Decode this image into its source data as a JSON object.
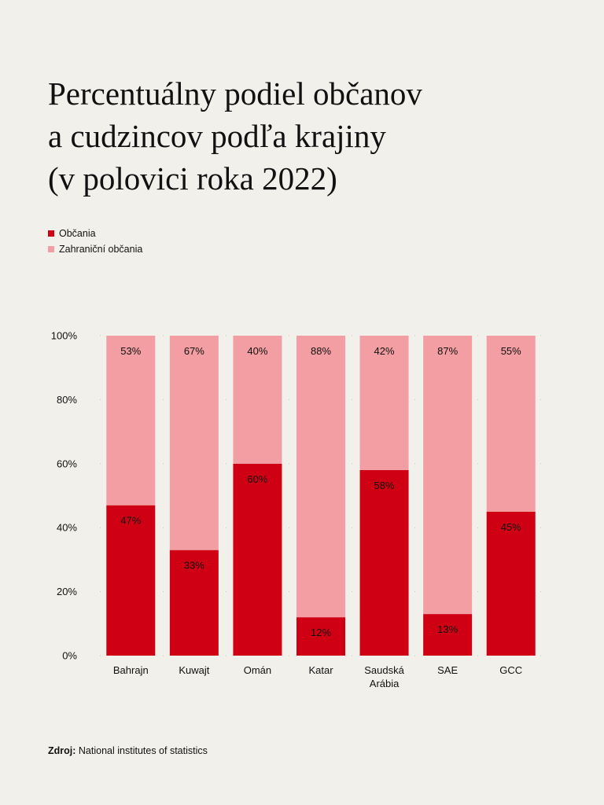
{
  "title_lines": [
    "Percentuálny podiel občanov",
    "a cudzincov podľa krajiny",
    "(v polovici roka 2022)"
  ],
  "legend": [
    {
      "label": "Občania",
      "color": "#cf0013"
    },
    {
      "label": "Zahraniční občania",
      "color": "#f29ea2"
    }
  ],
  "source": {
    "label": "Zdroj:",
    "text": "National institutes of statistics"
  },
  "chart_data": {
    "type": "bar",
    "stacked": true,
    "categories": [
      [
        "Bahrajn"
      ],
      [
        "Kuwajt"
      ],
      [
        "Omán"
      ],
      [
        "Katar"
      ],
      [
        "Saudská",
        "Arábia"
      ],
      [
        "SAE"
      ],
      [
        "GCC"
      ]
    ],
    "series": [
      {
        "name": "Občania",
        "color": "#cf0013",
        "values": [
          47,
          33,
          60,
          12,
          58,
          13,
          45
        ],
        "labels": [
          "47%",
          "33%",
          "60%",
          "12%",
          "58%",
          "13%",
          "45%"
        ]
      },
      {
        "name": "Zahraniční občania",
        "color": "#f29ea2",
        "values": [
          53,
          67,
          40,
          88,
          42,
          87,
          55
        ],
        "labels": [
          "53%",
          "67%",
          "40%",
          "88%",
          "42%",
          "87%",
          "55%"
        ]
      }
    ],
    "y_ticks": [
      "0%",
      "20%",
      "40%",
      "60%",
      "80%",
      "100%"
    ],
    "ylim": [
      0,
      100
    ],
    "grid": "dotted"
  }
}
